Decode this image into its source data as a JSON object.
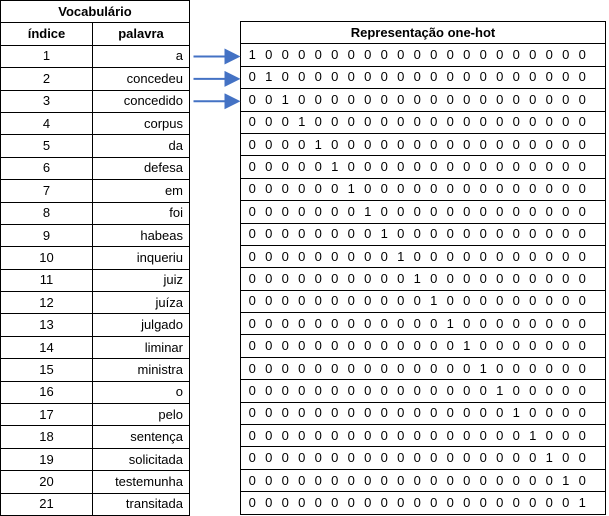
{
  "vocab": {
    "title": "Vocabulário",
    "col_index": "índice",
    "col_word": "palavra",
    "rows": [
      {
        "idx": "1",
        "word": "a"
      },
      {
        "idx": "2",
        "word": "concedeu"
      },
      {
        "idx": "3",
        "word": "concedido"
      },
      {
        "idx": "4",
        "word": "corpus"
      },
      {
        "idx": "5",
        "word": "da"
      },
      {
        "idx": "6",
        "word": "defesa"
      },
      {
        "idx": "7",
        "word": "em"
      },
      {
        "idx": "8",
        "word": "foi"
      },
      {
        "idx": "9",
        "word": "habeas"
      },
      {
        "idx": "10",
        "word": "inqueriu"
      },
      {
        "idx": "11",
        "word": "juiz"
      },
      {
        "idx": "12",
        "word": "juíza"
      },
      {
        "idx": "13",
        "word": "julgado"
      },
      {
        "idx": "14",
        "word": "liminar"
      },
      {
        "idx": "15",
        "word": "ministra"
      },
      {
        "idx": "16",
        "word": "o"
      },
      {
        "idx": "17",
        "word": "pelo"
      },
      {
        "idx": "18",
        "word": "sentença"
      },
      {
        "idx": "19",
        "word": "solicitada"
      },
      {
        "idx": "20",
        "word": "testemunha"
      },
      {
        "idx": "21",
        "word": "transitada"
      }
    ]
  },
  "onehot": {
    "title": "Representação one-hot",
    "vectors": [
      "1 0 0 0 0 0 0 0 0 0 0 0 0 0 0 0 0 0 0 0 0",
      "0 1 0 0 0 0 0 0 0 0 0 0 0 0 0 0 0 0 0 0 0",
      "0 0 1 0 0 0 0 0 0 0 0 0 0 0 0 0 0 0 0 0 0",
      "0 0 0 1 0 0 0 0 0 0 0 0 0 0 0 0 0 0 0 0 0",
      "0 0 0 0 1 0 0 0 0 0 0 0 0 0 0 0 0 0 0 0 0",
      "0 0 0 0 0 1 0 0 0 0 0 0 0 0 0 0 0 0 0 0 0",
      "0 0 0 0 0 0 1 0 0 0 0 0 0 0 0 0 0 0 0 0 0",
      "0 0 0 0 0 0 0 1 0 0 0 0 0 0 0 0 0 0 0 0 0",
      "0 0 0 0 0 0 0 0 1 0 0 0 0 0 0 0 0 0 0 0 0",
      "0 0 0 0 0 0 0 0 0 1 0 0 0 0 0 0 0 0 0 0 0",
      "0 0 0 0 0 0 0 0 0 0 1 0 0 0 0 0 0 0 0 0 0",
      "0 0 0 0 0 0 0 0 0 0 0 1 0 0 0 0 0 0 0 0 0",
      "0 0 0 0 0 0 0 0 0 0 0 0 1 0 0 0 0 0 0 0 0",
      "0 0 0 0 0 0 0 0 0 0 0 0 0 1 0 0 0 0 0 0 0",
      "0 0 0 0 0 0 0 0 0 0 0 0 0 0 1 0 0 0 0 0 0",
      "0 0 0 0 0 0 0 0 0 0 0 0 0 0 0 1 0 0 0 0 0",
      "0 0 0 0 0 0 0 0 0 0 0 0 0 0 0 0 1 0 0 0 0",
      "0 0 0 0 0 0 0 0 0 0 0 0 0 0 0 0 0 1 0 0 0",
      "0 0 0 0 0 0 0 0 0 0 0 0 0 0 0 0 0 0 1 0 0",
      "0 0 0 0 0 0 0 0 0 0 0 0 0 0 0 0 0 0 0 1 0",
      "0 0 0 0 0 0 0 0 0 0 0 0 0 0 0 0 0 0 0 0 1"
    ]
  },
  "arrows": {
    "color": "#4472C4",
    "from_rows": [
      "1",
      "2",
      "3"
    ]
  }
}
